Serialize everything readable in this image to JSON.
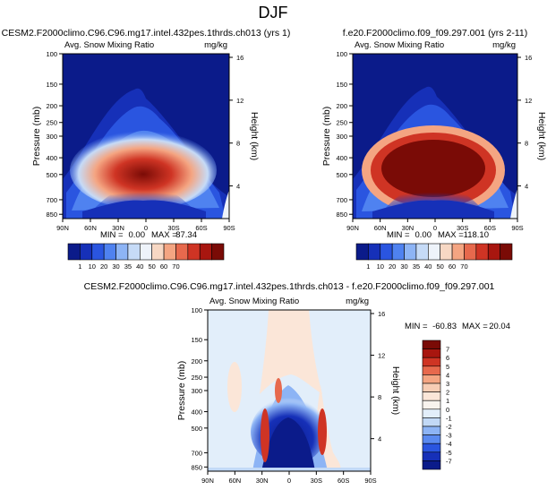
{
  "figure_title": "DJF",
  "chart_data": [
    {
      "type": "heatmap",
      "title": "CESM2.F2000climo.C96.C96.mg17.intel.432pes.1thrds.ch013 (yrs 1)",
      "subtitle": "Avg. Snow Mixing Ratio",
      "units": "mg/kg",
      "ylabel": "Pressure (mb)",
      "y2label": "Height (km)",
      "x_ticks": [
        "90N",
        "60N",
        "30N",
        "0",
        "30S",
        "60S",
        "90S"
      ],
      "y_ticks": [
        100,
        150,
        200,
        250,
        300,
        400,
        500,
        700,
        850
      ],
      "y_range": [
        100,
        900
      ],
      "y2_ticks": [
        16,
        12,
        8,
        4
      ],
      "min_label": "MIN =",
      "min_value": "0.00",
      "max_label": "MAX =",
      "max_value": "87.34",
      "colorbar_levels": [
        1,
        10,
        20,
        30,
        35,
        40,
        50,
        60,
        70
      ],
      "colorbar_labels": [
        "1",
        "10",
        "20",
        "30",
        "35",
        "40",
        "50",
        "60",
        "70"
      ],
      "colorbar_colors": [
        "#0b1b8a",
        "#1630b8",
        "#2a55e0",
        "#4f82f0",
        "#8db4f5",
        "#c6dbf7",
        "#eef3fa",
        "#f7d8c4",
        "#f4a582",
        "#e7694d",
        "#cf3424",
        "#a8160f",
        "#7a0b06"
      ],
      "peak_value": 87.34
    },
    {
      "type": "heatmap",
      "title": "f.e20.F2000climo.f09_f09.297.001 (yrs 2-11)",
      "subtitle": "Avg. Snow Mixing Ratio",
      "units": "mg/kg",
      "ylabel": "Pressure (mb)",
      "y2label": "Height (km)",
      "x_ticks": [
        "90N",
        "60N",
        "30N",
        "0",
        "30S",
        "60S",
        "90S"
      ],
      "y_ticks": [
        100,
        150,
        200,
        250,
        300,
        400,
        500,
        700,
        850
      ],
      "y_range": [
        100,
        900
      ],
      "y2_ticks": [
        16,
        12,
        8,
        4
      ],
      "min_label": "MIN =",
      "min_value": "0.00",
      "max_label": "MAX =",
      "max_value": "118.10",
      "colorbar_levels": [
        1,
        10,
        20,
        30,
        35,
        40,
        50,
        60,
        70
      ],
      "colorbar_labels": [
        "1",
        "10",
        "20",
        "30",
        "35",
        "40",
        "50",
        "60",
        "70"
      ],
      "colorbar_colors": [
        "#0b1b8a",
        "#1630b8",
        "#2a55e0",
        "#4f82f0",
        "#8db4f5",
        "#c6dbf7",
        "#eef3fa",
        "#f7d8c4",
        "#f4a582",
        "#e7694d",
        "#cf3424",
        "#a8160f",
        "#7a0b06"
      ],
      "peak_value": 118.1
    },
    {
      "type": "heatmap",
      "title": "CESM2.F2000climo.C96.C96.mg17.intel.432pes.1thrds.ch013 - f.e20.F2000climo.f09_f09.297.001",
      "subtitle": "Avg. Snow Mixing Ratio",
      "units": "mg/kg",
      "ylabel": "Pressure (mb)",
      "y2label": "Height (km)",
      "x_ticks": [
        "90N",
        "60N",
        "30N",
        "0",
        "30S",
        "60S",
        "90S"
      ],
      "y_ticks": [
        100,
        150,
        200,
        250,
        300,
        400,
        500,
        700,
        850
      ],
      "y_range": [
        100,
        900
      ],
      "y2_ticks": [
        16,
        12,
        8,
        4
      ],
      "min_label": "MIN =",
      "min_value": "-60.83",
      "max_label": "MAX =",
      "max_value": "20.04",
      "colorbar_levels": [
        7,
        6,
        5,
        4,
        3,
        2,
        1,
        0,
        -1,
        -2,
        -3,
        -4,
        -5,
        -7
      ],
      "colorbar_labels": [
        "7",
        "6",
        "5",
        "4",
        "3",
        "2",
        "1",
        "0",
        "-1",
        "-2",
        "-3",
        "-4",
        "-5",
        "-7"
      ],
      "colorbar_colors": [
        "#7a0b06",
        "#a8160f",
        "#cf3424",
        "#e7694d",
        "#f4a582",
        "#f7cdb4",
        "#fbe6d8",
        "#f8f3ee",
        "#e2eefa",
        "#c2d9f6",
        "#8db4f5",
        "#5a8af0",
        "#2a55e0",
        "#1630b8",
        "#0b1b8a"
      ]
    }
  ]
}
